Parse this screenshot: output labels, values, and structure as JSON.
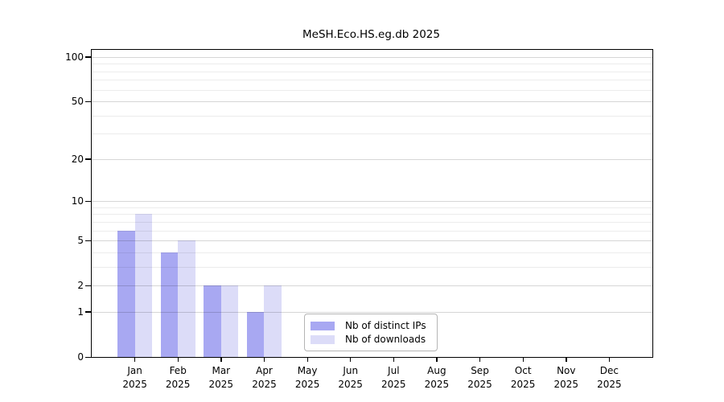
{
  "chart_data": {
    "type": "bar",
    "title": "MeSH.Eco.HS.eg.db 2025",
    "xlabel": "",
    "ylabel": "",
    "yscale": "log1p",
    "grid": "horizontal",
    "legend_position": "bottom-center-inside",
    "categories": [
      "Jan",
      "Feb",
      "Mar",
      "Apr",
      "May",
      "Jun",
      "Jul",
      "Aug",
      "Sep",
      "Oct",
      "Nov",
      "Dec"
    ],
    "category_year": "2025",
    "y_major_ticks": [
      0,
      1,
      2,
      5,
      10,
      20,
      50,
      100
    ],
    "y_minor_gridlines": [
      3,
      4,
      6,
      7,
      8,
      9,
      30,
      40,
      60,
      70,
      80,
      90
    ],
    "ylim": [
      0,
      112
    ],
    "series": [
      {
        "name": "Nb of distinct IPs",
        "color": "#a8a8f2",
        "values": [
          6,
          4,
          2,
          1,
          0,
          0,
          0,
          0,
          0,
          0,
          0,
          0
        ]
      },
      {
        "name": "Nb of downloads",
        "color": "#dcdcf8",
        "values": [
          8,
          5,
          2,
          2,
          0,
          0,
          0,
          0,
          0,
          0,
          0,
          0
        ]
      }
    ],
    "colors": {
      "axis": "#000000",
      "grid_major": "#d8d8d8",
      "grid_minor": "#ececec",
      "background": "#ffffff",
      "text": "#000000"
    }
  }
}
